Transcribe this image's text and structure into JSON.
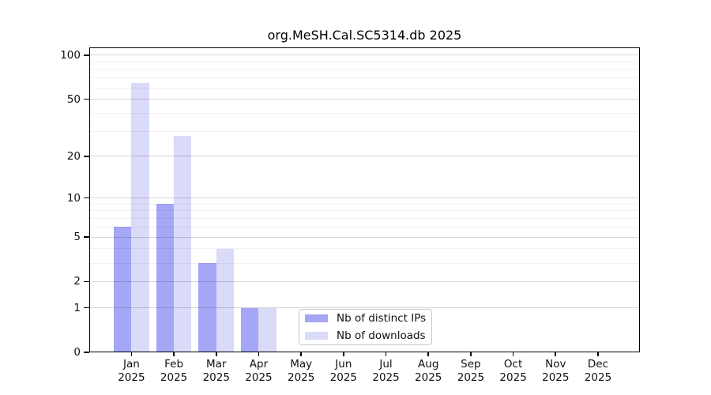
{
  "chart_data": {
    "type": "bar",
    "title": "org.MeSH.Cal.SC5314.db 2025",
    "categories": [
      "Jan",
      "Feb",
      "Mar",
      "Apr",
      "May",
      "Jun",
      "Jul",
      "Aug",
      "Sep",
      "Oct",
      "Nov",
      "Dec"
    ],
    "category_year": "2025",
    "series": [
      {
        "name": "Nb of distinct IPs",
        "color": "#a6a6f6",
        "values": [
          6,
          9,
          3,
          1,
          0,
          0,
          0,
          0,
          0,
          0,
          0,
          0
        ]
      },
      {
        "name": "Nb of downloads",
        "color": "#dadaf9",
        "values": [
          65,
          28,
          4,
          1,
          0,
          0,
          0,
          0,
          0,
          0,
          0,
          0
        ]
      }
    ],
    "yscale": "log10(1+x)",
    "ylim": [
      0,
      113
    ],
    "yticks": [
      0,
      1,
      2,
      5,
      10,
      20,
      50,
      100
    ],
    "minor_yticks": [
      3,
      4,
      6,
      7,
      8,
      9,
      30,
      40,
      60,
      70,
      80,
      90
    ],
    "grid": "horizontal",
    "legend_position": "bottom-center-inside",
    "axis_color": "#000000",
    "background_color": "#ffffff"
  }
}
